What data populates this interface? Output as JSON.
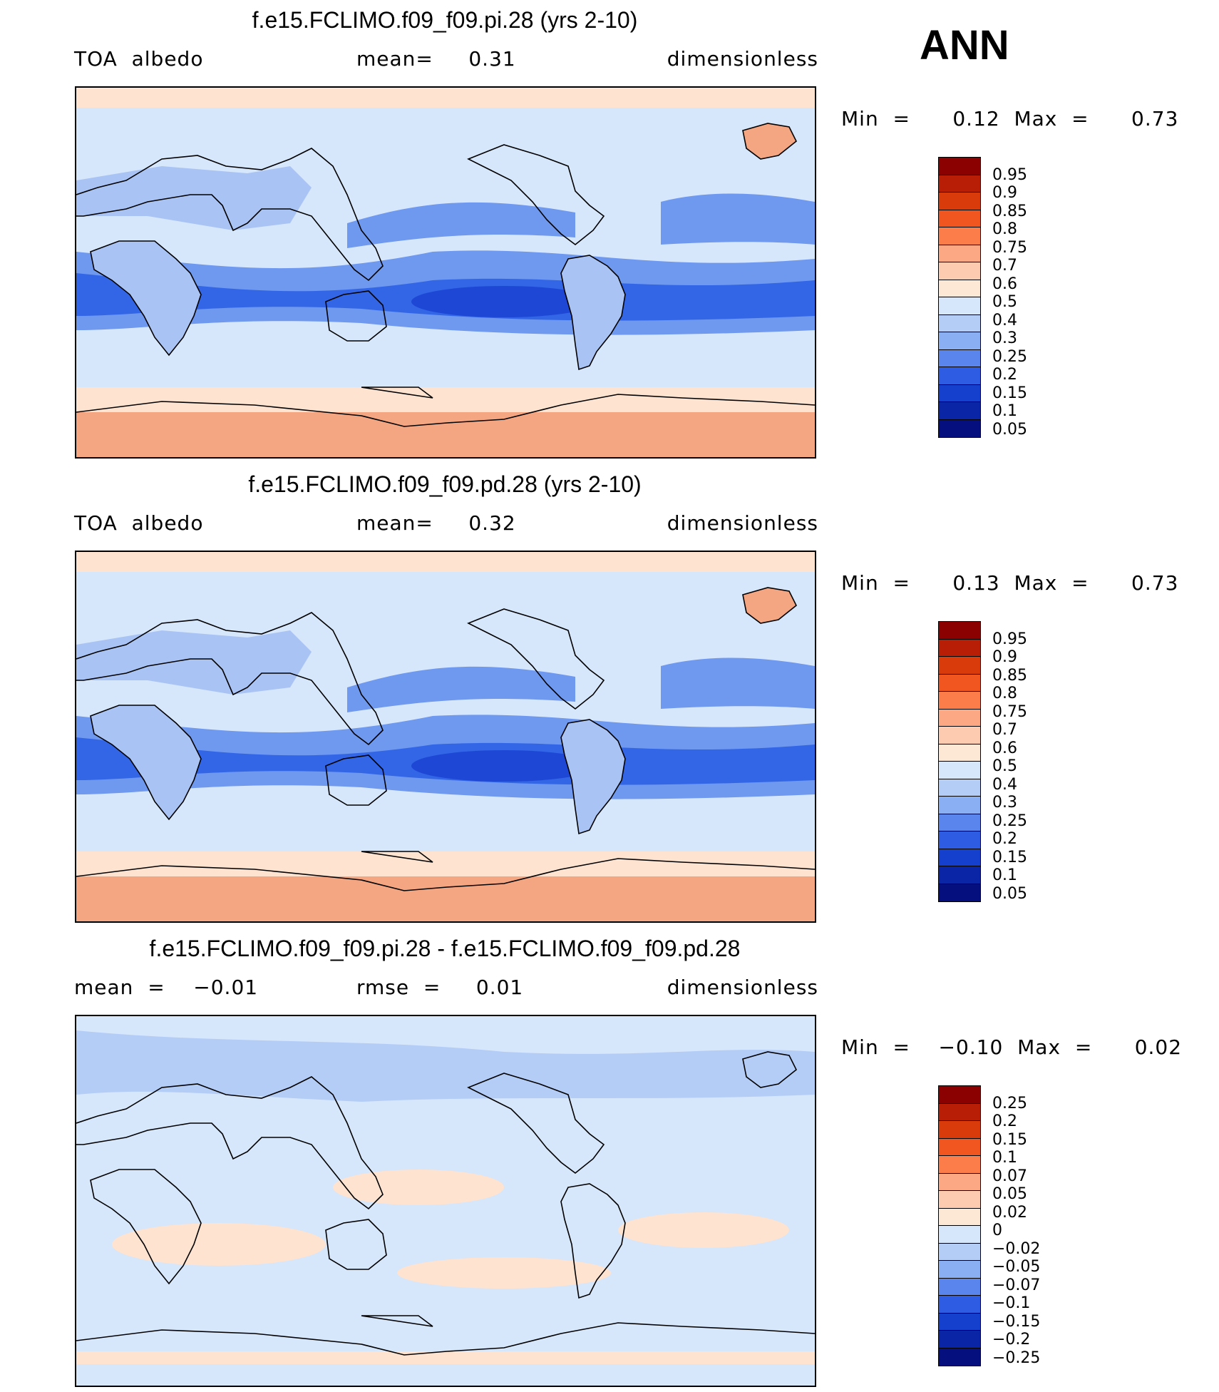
{
  "season_label": "ANN",
  "panels": [
    {
      "title": "f.e15.FCLIMO.f09_f09.pi.28 (yrs 2-10)",
      "left_label": "TOA  albedo",
      "mid_label": "mean=     0.31",
      "right_label": "dimensionless",
      "minmax": "Min  =      0.12  Max  =      0.73",
      "colorbar_levels": [
        "0.95",
        "0.9",
        "0.85",
        "0.8",
        "0.75",
        "0.7",
        "0.6",
        "0.5",
        "0.4",
        "0.3",
        "0.25",
        "0.2",
        "0.15",
        "0.1",
        "0.05"
      ],
      "colorbar_colors": [
        "#8b0000",
        "#b81d05",
        "#d93b0a",
        "#f25620",
        "#fc7c4a",
        "#fda884",
        "#fccbb0",
        "#fde8d6",
        "#d6e6fb",
        "#b3cdf7",
        "#8aaff2",
        "#5a85ec",
        "#2e5de3",
        "#153fcd",
        "#0a25a6",
        "#050f7e"
      ],
      "field_colors": {
        "polar": "#f4a582",
        "hi_lat": "#fde3d0",
        "mid_ocean": "#d6e6fb",
        "land": "#a9c4f4",
        "subtrop": "#6f98ef",
        "tropic": "#3366e6",
        "dark": "#1e47d6"
      }
    },
    {
      "title": "f.e15.FCLIMO.f09_f09.pd.28 (yrs 2-10)",
      "left_label": "TOA  albedo",
      "mid_label": "mean=     0.32",
      "right_label": "dimensionless",
      "minmax": "Min  =      0.13  Max  =      0.73",
      "colorbar_levels": [
        "0.95",
        "0.9",
        "0.85",
        "0.8",
        "0.75",
        "0.7",
        "0.6",
        "0.5",
        "0.4",
        "0.3",
        "0.25",
        "0.2",
        "0.15",
        "0.1",
        "0.05"
      ],
      "colorbar_colors": [
        "#8b0000",
        "#b81d05",
        "#d93b0a",
        "#f25620",
        "#fc7c4a",
        "#fda884",
        "#fccbb0",
        "#fde8d6",
        "#d6e6fb",
        "#b3cdf7",
        "#8aaff2",
        "#5a85ec",
        "#2e5de3",
        "#153fcd",
        "#0a25a6",
        "#050f7e"
      ],
      "field_colors": {
        "polar": "#f4a582",
        "hi_lat": "#fde3d0",
        "mid_ocean": "#d6e6fb",
        "land": "#a9c4f4",
        "subtrop": "#6f98ef",
        "tropic": "#3366e6",
        "dark": "#1e47d6"
      }
    },
    {
      "title": "f.e15.FCLIMO.f09_f09.pi.28 - f.e15.FCLIMO.f09_f09.pd.28",
      "left_label": "mean  =    −0.01",
      "mid_label": "rmse  =     0.01",
      "right_label": "dimensionless",
      "minmax": "Min  =    −0.10  Max  =      0.02",
      "colorbar_levels": [
        "0.25",
        "0.2",
        "0.15",
        "0.1",
        "0.07",
        "0.05",
        "0.02",
        "0",
        "−0.02",
        "−0.05",
        "−0.07",
        "−0.1",
        "−0.15",
        "−0.2",
        "−0.25"
      ],
      "colorbar_colors": [
        "#8b0000",
        "#b81d05",
        "#d93b0a",
        "#f25620",
        "#fc7c4a",
        "#fda884",
        "#fccbb0",
        "#fde8d6",
        "#d6e6fb",
        "#b3cdf7",
        "#8aaff2",
        "#5a85ec",
        "#2e5de3",
        "#153fcd",
        "#0a25a6",
        "#050f7e"
      ],
      "field_colors": {
        "base": "#d6e6fb",
        "neg": "#b3cdf7",
        "pos": "#fde3d0"
      }
    }
  ]
}
